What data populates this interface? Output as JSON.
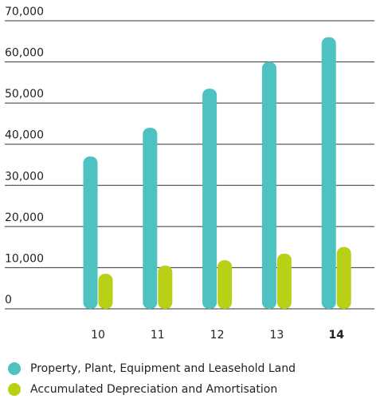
{
  "chart_data": {
    "type": "bar",
    "categories": [
      "10",
      "11",
      "12",
      "13",
      "14"
    ],
    "emphasized_category": 4,
    "series": [
      {
        "name": "Property, Plant, Equipment and Leasehold Land",
        "color": "#4ec2c0",
        "values": [
          37000,
          44000,
          53500,
          60000,
          66000
        ]
      },
      {
        "name": "Accumulated Depreciation and Amortisation",
        "color": "#b8d116",
        "values": [
          8500,
          10500,
          11800,
          13400,
          15000
        ]
      }
    ],
    "ylim": [
      0,
      70000
    ],
    "yticks": [
      0,
      {
        "value": 10000,
        "label": "10,000"
      },
      {
        "value": 20000,
        "label": "20,000"
      },
      {
        "value": 30000,
        "label": "30,000"
      },
      {
        "value": 40000,
        "label": "40,000"
      },
      {
        "value": 50000,
        "label": "50,000"
      },
      {
        "value": 60000,
        "label": "60,000"
      },
      {
        "value": 70000,
        "label": "70,000"
      }
    ],
    "grid": true,
    "legend": "bottom"
  }
}
